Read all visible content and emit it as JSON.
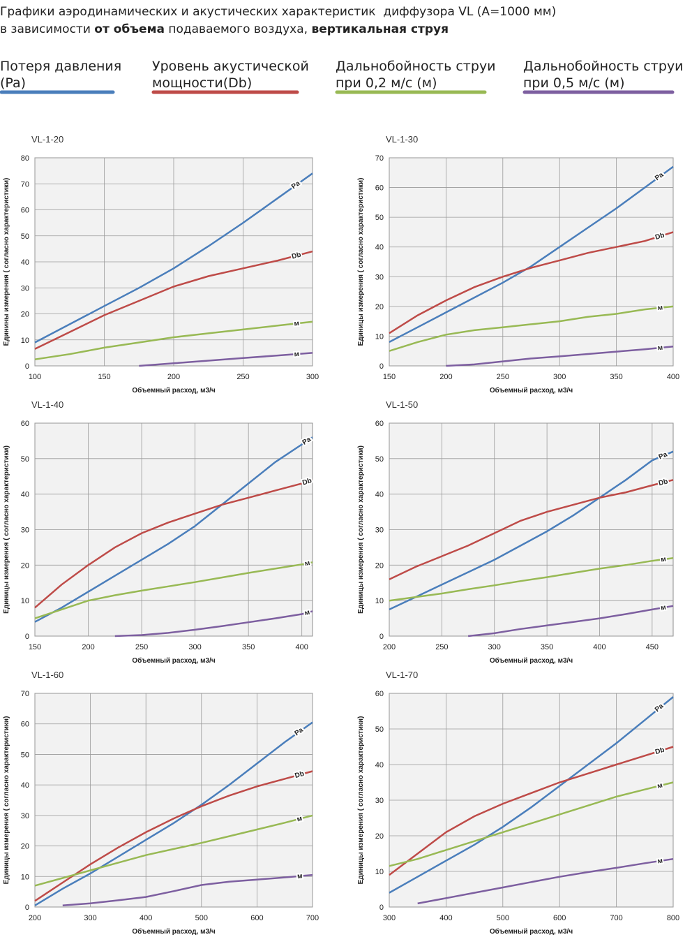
{
  "header": {
    "title_lines": [
      [
        {
          "text": "Графики аэродинамических и акустических характеристик  диффузора VL (A=1000 мм)",
          "bold": false
        }
      ],
      [
        {
          "text": "в зависимости ",
          "bold": false
        },
        {
          "text": "от объема",
          "bold": true
        },
        {
          "text": " подаваемого воздуха, ",
          "bold": false
        },
        {
          "text": "вертикальная струя",
          "bold": true
        }
      ]
    ]
  },
  "legend": [
    {
      "lines": [
        "Потеря давления",
        "(Pa)"
      ],
      "color": "#4a7ebb"
    },
    {
      "lines": [
        "Уровень акустической",
        "мощности(Db)"
      ],
      "color": "#be4b48"
    },
    {
      "lines": [
        "Дальнобойность струи",
        "при 0,2 м/с (м)"
      ],
      "color": "#98b954"
    },
    {
      "lines": [
        "Дальнобойность струи",
        "при 0,5 м/с (м)"
      ],
      "color": "#7d5fa0"
    }
  ],
  "chart_data": [
    {
      "type": "line",
      "title": "VL-1-20",
      "x_label": "Объемный расход, м3/ч",
      "y_label": "Единины измерения ( согласно характеристики)",
      "grid": true,
      "xlim": [
        100,
        300
      ],
      "xticks": [
        100,
        150,
        200,
        250,
        300
      ],
      "ylim": [
        0,
        80
      ],
      "yticks": [
        0,
        10,
        20,
        30,
        40,
        50,
        60,
        70,
        80
      ],
      "x": [
        100,
        125,
        150,
        175,
        200,
        225,
        250,
        275,
        300
      ],
      "series": [
        {
          "name": "Pa",
          "color": "#4a7ebb",
          "values": [
            9,
            16,
            23,
            30,
            37.5,
            46,
            55,
            64.5,
            74
          ]
        },
        {
          "name": "Db",
          "color": "#be4b48",
          "values": [
            6.5,
            13,
            19.5,
            25,
            30.5,
            34.5,
            37.5,
            40.5,
            44
          ]
        },
        {
          "name": "м",
          "color": "#98b954",
          "values": [
            2.5,
            4.5,
            7,
            9,
            11,
            12.5,
            14,
            15.5,
            17
          ]
        },
        {
          "name": "м",
          "color": "#7d5fa0",
          "values": [
            null,
            null,
            null,
            0,
            1,
            2,
            3,
            4,
            5
          ]
        }
      ]
    },
    {
      "type": "line",
      "title": "VL-1-30",
      "x_label": "Объемный расход, м3/ч",
      "y_label": "Единицы измерения ( согласно характеристики)",
      "grid": true,
      "xlim": [
        150,
        400
      ],
      "xticks": [
        150,
        200,
        250,
        300,
        350,
        400
      ],
      "ylim": [
        0,
        70
      ],
      "yticks": [
        0,
        10,
        20,
        30,
        40,
        50,
        60,
        70
      ],
      "x": [
        150,
        175,
        200,
        225,
        250,
        275,
        300,
        325,
        350,
        375,
        400
      ],
      "series": [
        {
          "name": "Pa",
          "color": "#4a7ebb",
          "values": [
            8,
            13,
            18,
            23,
            28,
            33.5,
            40,
            46.5,
            53,
            60,
            67
          ]
        },
        {
          "name": "Db",
          "color": "#be4b48",
          "values": [
            11,
            17,
            22,
            26.5,
            30,
            33,
            35.5,
            38,
            40,
            42,
            45
          ]
        },
        {
          "name": "м",
          "color": "#98b954",
          "values": [
            5,
            8,
            10.5,
            12,
            13,
            14,
            15,
            16.5,
            17.5,
            19,
            20
          ]
        },
        {
          "name": "м",
          "color": "#7d5fa0",
          "values": [
            null,
            null,
            0,
            0.5,
            1.5,
            2.5,
            3.2,
            4,
            4.8,
            5.6,
            6.5
          ]
        }
      ]
    },
    {
      "type": "line",
      "title": "VL-1-40",
      "x_label": "Объемный расход, м3/ч",
      "y_label": "Единицы измерения ( согласно характеристики)",
      "grid": true,
      "xlim": [
        150,
        410
      ],
      "xticks": [
        150,
        200,
        250,
        300,
        350,
        400
      ],
      "ylim": [
        0,
        60
      ],
      "yticks": [
        0,
        10,
        20,
        30,
        40,
        50,
        60
      ],
      "x": [
        150,
        175,
        200,
        225,
        250,
        275,
        300,
        325,
        350,
        375,
        400,
        410
      ],
      "series": [
        {
          "name": "Pa",
          "color": "#4a7ebb",
          "values": [
            4,
            8,
            12.5,
            17,
            21.5,
            26,
            31,
            37,
            43,
            49,
            54,
            56
          ]
        },
        {
          "name": "Db",
          "color": "#be4b48",
          "values": [
            8,
            14.5,
            20,
            25,
            29,
            32,
            34.5,
            37,
            39,
            41,
            43,
            44
          ]
        },
        {
          "name": "м",
          "color": "#98b954",
          "values": [
            5,
            7.5,
            10,
            11.5,
            12.8,
            14,
            15.2,
            16.5,
            17.8,
            19,
            20.2,
            20.8
          ]
        },
        {
          "name": "м",
          "color": "#7d5fa0",
          "values": [
            null,
            null,
            null,
            0,
            0.3,
            0.9,
            1.8,
            2.8,
            3.9,
            5,
            6.2,
            7
          ]
        }
      ]
    },
    {
      "type": "line",
      "title": "VL-1-50",
      "x_label": "Объемный расход, м3/ч",
      "y_label": "Единицы измерения ( согласно характеристики)",
      "grid": true,
      "xlim": [
        200,
        470
      ],
      "xticks": [
        200,
        250,
        300,
        350,
        400,
        450
      ],
      "ylim": [
        0,
        60
      ],
      "yticks": [
        0,
        10,
        20,
        30,
        40,
        50,
        60
      ],
      "x": [
        200,
        225,
        250,
        275,
        300,
        325,
        350,
        375,
        400,
        425,
        450,
        470
      ],
      "series": [
        {
          "name": "Pa",
          "color": "#4a7ebb",
          "values": [
            7.5,
            11,
            14.5,
            18,
            21.5,
            25.5,
            29.5,
            34,
            39,
            44,
            49.5,
            52
          ]
        },
        {
          "name": "Db",
          "color": "#be4b48",
          "values": [
            16,
            19.5,
            22.5,
            25.5,
            29,
            32.5,
            35,
            37,
            39,
            40.5,
            42.5,
            44
          ]
        },
        {
          "name": "м",
          "color": "#98b954",
          "values": [
            10,
            11,
            12,
            13.2,
            14.3,
            15.5,
            16.6,
            17.8,
            19,
            20,
            21.2,
            22
          ]
        },
        {
          "name": "м",
          "color": "#7d5fa0",
          "values": [
            null,
            null,
            null,
            0,
            0.8,
            2,
            3,
            4,
            5,
            6.2,
            7.5,
            8.5
          ]
        }
      ]
    },
    {
      "type": "line",
      "title": "VL-1-60",
      "x_label": "Объемный расход, м3/ч",
      "y_label": "Единицы измерения ( согласно характеристики)",
      "grid": true,
      "xlim": [
        200,
        700
      ],
      "xticks": [
        200,
        300,
        400,
        500,
        600,
        700
      ],
      "ylim": [
        0,
        70
      ],
      "yticks": [
        0,
        10,
        20,
        30,
        40,
        50,
        60,
        70
      ],
      "x": [
        200,
        250,
        300,
        350,
        400,
        450,
        500,
        550,
        600,
        650,
        700
      ],
      "series": [
        {
          "name": "Pa",
          "color": "#4a7ebb",
          "values": [
            0.5,
            6,
            11,
            16.5,
            22,
            27.5,
            33.5,
            40,
            47,
            54,
            60.5
          ]
        },
        {
          "name": "Db",
          "color": "#be4b48",
          "values": [
            2,
            8,
            14,
            19.5,
            24.5,
            29,
            33,
            36.5,
            39.5,
            42,
            44.5
          ]
        },
        {
          "name": "м",
          "color": "#98b954",
          "values": [
            7,
            9.5,
            12,
            14.5,
            17,
            19,
            21,
            23.2,
            25.4,
            27.6,
            30
          ]
        },
        {
          "name": "м",
          "color": "#7d5fa0",
          "values": [
            null,
            0.5,
            1.2,
            2.2,
            3.3,
            5.2,
            7.2,
            8.3,
            9,
            9.7,
            10.5
          ]
        }
      ]
    },
    {
      "type": "line",
      "title": "VL-1-70",
      "x_label": "Объемный расход, м3/ч",
      "y_label": "Единицы измерения ( согласно характеристики)",
      "grid": true,
      "xlim": [
        300,
        800
      ],
      "xticks": [
        300,
        400,
        500,
        600,
        700,
        800
      ],
      "ylim": [
        0,
        60
      ],
      "yticks": [
        0,
        10,
        20,
        30,
        40,
        50,
        60
      ],
      "x": [
        300,
        350,
        400,
        450,
        500,
        550,
        600,
        650,
        700,
        750,
        800
      ],
      "series": [
        {
          "name": "Pa",
          "color": "#4a7ebb",
          "values": [
            4,
            8.5,
            13,
            17.5,
            22.5,
            28,
            34,
            40,
            46,
            52.5,
            59
          ]
        },
        {
          "name": "Db",
          "color": "#be4b48",
          "values": [
            9,
            15,
            21,
            25.5,
            29,
            32,
            35,
            37.5,
            40,
            42.5,
            45
          ]
        },
        {
          "name": "м",
          "color": "#98b954",
          "values": [
            11.5,
            13.5,
            16,
            18.5,
            21,
            23.5,
            26,
            28.5,
            31,
            33,
            35
          ]
        },
        {
          "name": "м",
          "color": "#7d5fa0",
          "values": [
            null,
            1,
            2.5,
            4,
            5.5,
            7,
            8.5,
            9.8,
            11,
            12.3,
            13.5
          ]
        }
      ]
    }
  ]
}
